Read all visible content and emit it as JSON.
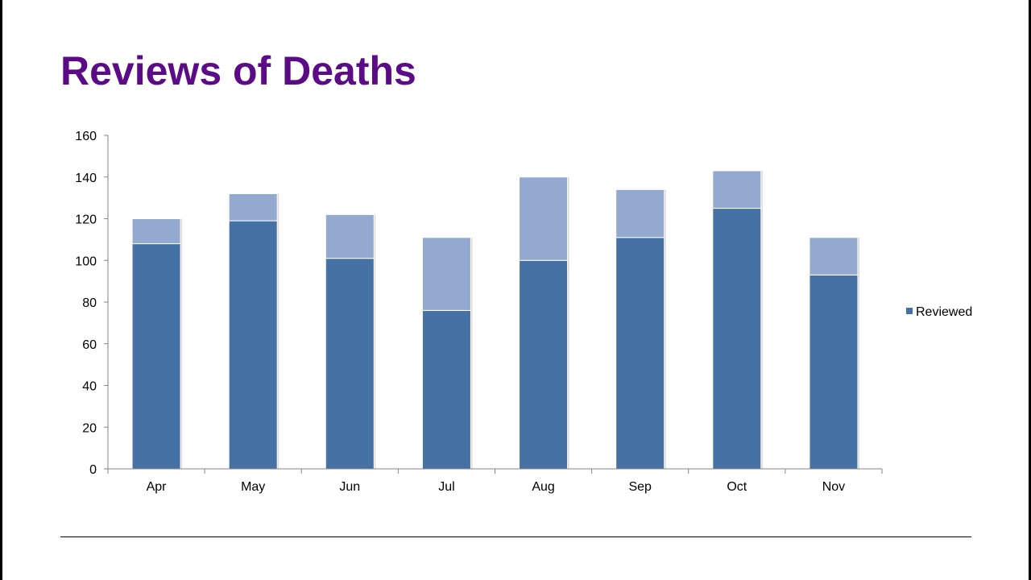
{
  "slide": {
    "title": "Reviews of Deaths"
  },
  "chart_data": {
    "type": "bar",
    "stacked": true,
    "categories": [
      "Apr",
      "May",
      "Jun",
      "Jul",
      "Aug",
      "Sep",
      "Oct",
      "Nov"
    ],
    "series": [
      {
        "name": "Reviewed",
        "values": [
          108,
          119,
          101,
          76,
          100,
          111,
          125,
          93
        ],
        "color": "#4671a5"
      },
      {
        "values": [
          12,
          13,
          21,
          35,
          40,
          23,
          18,
          18
        ],
        "color": "#93a9d0"
      }
    ],
    "totals": [
      120,
      132,
      122,
      111,
      140,
      134,
      143,
      111
    ],
    "ylim": [
      0,
      160
    ],
    "yticks": [
      0,
      20,
      40,
      60,
      80,
      100,
      120,
      140,
      160
    ],
    "grid": false,
    "legend": {
      "placement": "right",
      "entries": [
        "Reviewed"
      ]
    }
  }
}
